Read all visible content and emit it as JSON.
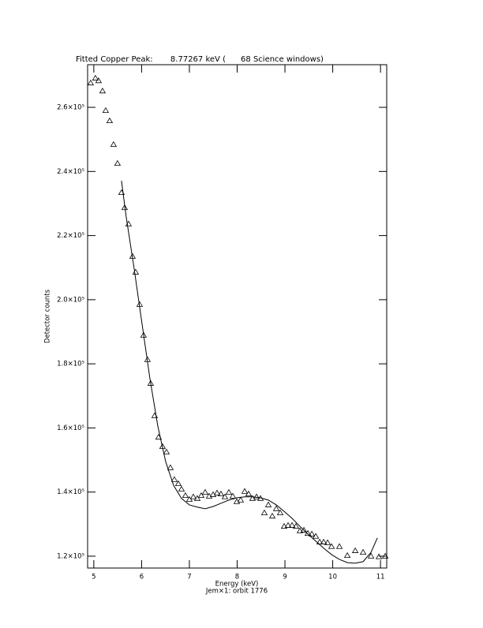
{
  "chart_data": {
    "type": "scatter",
    "title": "Fitted Copper Peak:       8.77267 keV (      68 Science windows)",
    "x_label": "Energy (keV)",
    "subtitle": "Jem×1: orbit 1776",
    "y_label": "Detector counts",
    "xlim": [
      4.87,
      11.13
    ],
    "ylim": [
      116300,
      273300
    ],
    "xticks": [
      5,
      6,
      7,
      8,
      9,
      10,
      11
    ],
    "yticks": [
      {
        "value": 120000,
        "label": "1.2×10⁵"
      },
      {
        "value": 140000,
        "label": "1.4×10⁵"
      },
      {
        "value": 160000,
        "label": "1.6×10⁵"
      },
      {
        "value": 180000,
        "label": "1.8×10⁵"
      },
      {
        "value": 200000,
        "label": "2.0×10⁵"
      },
      {
        "value": 220000,
        "label": "2.2×10⁵"
      },
      {
        "value": 240000,
        "label": "2.4×10⁵"
      },
      {
        "value": 260000,
        "label": "2.6×10⁵"
      }
    ],
    "series": [
      {
        "style": "triangle",
        "color": "#000000",
        "x": [
          4.934,
          5.033,
          5.099,
          5.182,
          5.248,
          5.331,
          5.413,
          5.496,
          5.579,
          5.645,
          5.727,
          5.81,
          5.876,
          5.959,
          6.041,
          6.124,
          6.19,
          6.273,
          6.355,
          6.438,
          6.521,
          6.603,
          6.686,
          6.769,
          6.835,
          6.917,
          7.0,
          7.083,
          7.165,
          7.248,
          7.331,
          7.413,
          7.496,
          7.579,
          7.661,
          7.744,
          7.826,
          7.909,
          7.992,
          8.074,
          8.157,
          8.24,
          8.322,
          8.405,
          8.488,
          8.57,
          8.653,
          8.736,
          8.818,
          8.901,
          8.983,
          9.066,
          9.149,
          9.231,
          9.314,
          9.397,
          9.479,
          9.562,
          9.645,
          9.727,
          9.81,
          9.893,
          9.975,
          10.14,
          10.306,
          10.471,
          10.636,
          10.802,
          10.967,
          11.099
        ],
        "values": [
          267600,
          269100,
          268300,
          265100,
          259000,
          255800,
          248400,
          242500,
          233400,
          228700,
          223600,
          213500,
          208600,
          198500,
          188900,
          181300,
          173900,
          163800,
          157100,
          154200,
          152500,
          147600,
          143900,
          142600,
          140900,
          138900,
          137700,
          138500,
          138000,
          138900,
          139900,
          138700,
          139200,
          139700,
          139400,
          138500,
          139900,
          138700,
          137000,
          137500,
          140200,
          139400,
          138000,
          138500,
          138000,
          133500,
          136000,
          132500,
          134800,
          133500,
          129300,
          129600,
          129600,
          129300,
          127900,
          128100,
          127100,
          126900,
          126200,
          124400,
          124400,
          124200,
          123000,
          123000,
          120200,
          121700,
          121200,
          120000,
          119800,
          120000
        ]
      },
      {
        "style": "line",
        "color": "#000000",
        "x": [
          5.579,
          5.678,
          5.843,
          6.008,
          6.174,
          6.339,
          6.504,
          6.669,
          6.835,
          7.0,
          7.165,
          7.331,
          7.496,
          7.661,
          7.826,
          7.992,
          8.157,
          8.322,
          8.488,
          8.653,
          8.818,
          8.983,
          9.149,
          9.314,
          9.479,
          9.645,
          9.81,
          9.975,
          10.14,
          10.306,
          10.471,
          10.636,
          10.802,
          10.934
        ],
        "values": [
          237100,
          225800,
          209800,
          192600,
          175400,
          160600,
          149500,
          142100,
          138000,
          136000,
          135300,
          134800,
          135500,
          136500,
          137500,
          138200,
          138500,
          138500,
          138200,
          137500,
          136000,
          134000,
          131800,
          129300,
          126900,
          124700,
          122500,
          120500,
          119000,
          118000,
          117800,
          118300,
          121200,
          125700
        ]
      }
    ]
  }
}
